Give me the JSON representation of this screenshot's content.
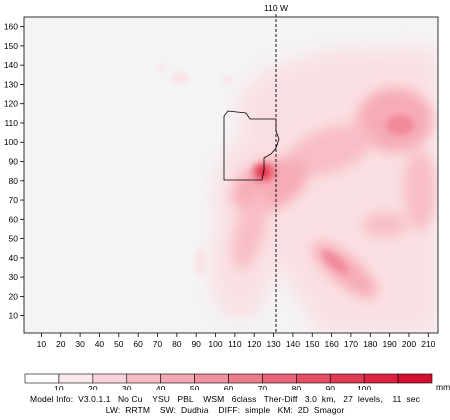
{
  "map": {
    "meridian_label": "110 W",
    "x_ticks": [
      "10",
      "20",
      "30",
      "40",
      "50",
      "60",
      "70",
      "80",
      "90",
      "100",
      "110",
      "120",
      "130",
      "140",
      "150",
      "160",
      "170",
      "180",
      "190",
      "200",
      "210"
    ],
    "y_ticks": [
      "10",
      "20",
      "30",
      "40",
      "50",
      "60",
      "70",
      "80",
      "90",
      "100",
      "110",
      "120",
      "130",
      "140",
      "150",
      "160"
    ],
    "x_range": [
      1,
      215
    ],
    "y_range": [
      1,
      165
    ],
    "colors": {
      "background": "#f4f4f4",
      "light": "#fbdde1",
      "medium": "#f6a9b4",
      "strong": "#ee6e80",
      "peak": "#e0203c"
    }
  },
  "colorbar": {
    "labels": [
      "10",
      "20",
      "30",
      "40",
      "50",
      "60",
      "70",
      "80",
      "90",
      "100"
    ],
    "unit": "mm",
    "swatches": [
      "#ffffff",
      "#fce9ec",
      "#f9d3d9",
      "#f6bdc6",
      "#f3a7b3",
      "#f091a0",
      "#ec7b8c",
      "#e96579",
      "#e54f66",
      "#e23953",
      "#de2340",
      "#d6102f"
    ]
  },
  "footer": {
    "line1": "Model Info:  V3.0.1.1   No Cu    YSU   PBL    WSM   6class   Ther-Diff   3.0  km,   27  levels,    11  sec",
    "line2": "LW:  RRTM    SW:  Dudhia    DIFF:  simple   KM:  2D  Smagor"
  }
}
